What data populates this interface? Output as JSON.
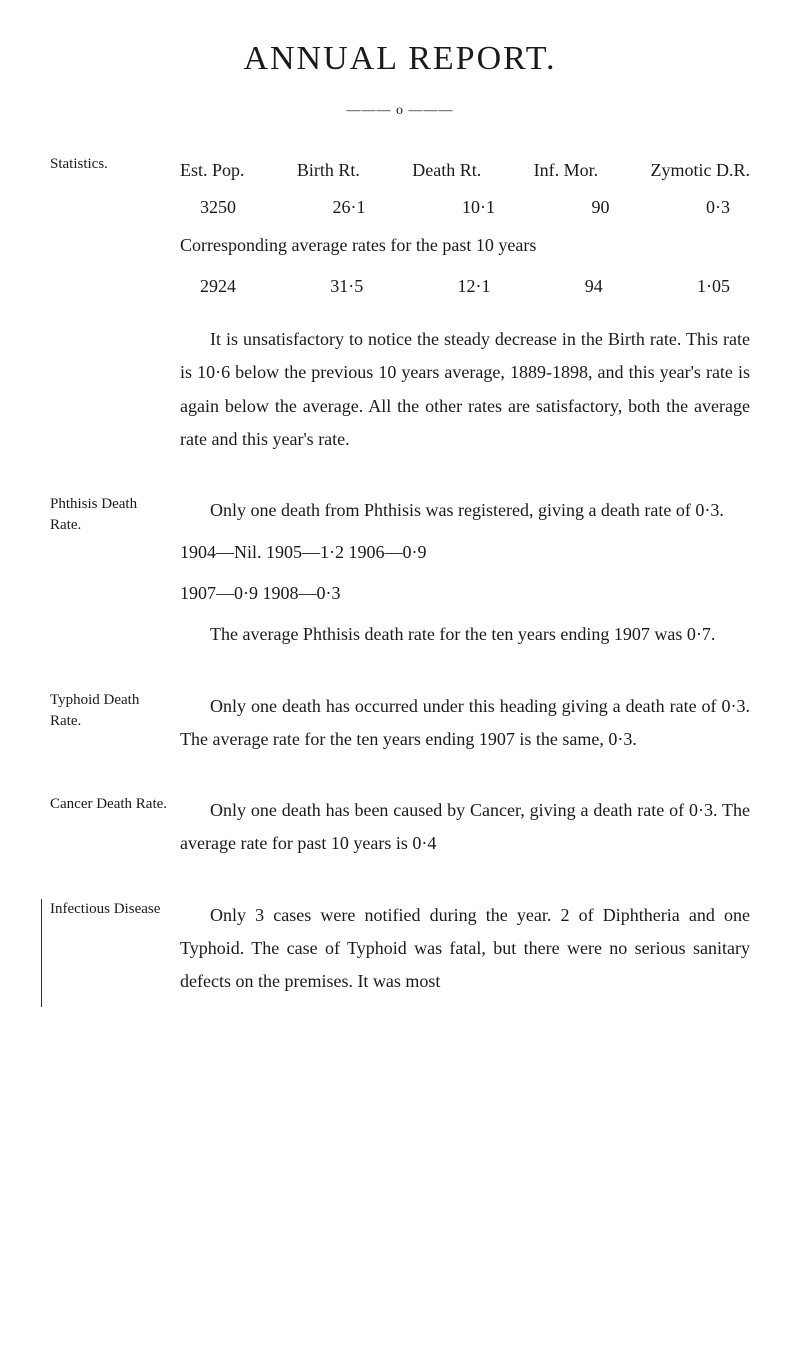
{
  "page": {
    "title": "ANNUAL REPORT.",
    "divider": "——— o ———",
    "sections": {
      "statistics": {
        "label": "Statistics.",
        "header_row": {
          "c0": "Est. Pop.",
          "c1": "Birth Rt.",
          "c2": "Death Rt.",
          "c3": "Inf. Mor.",
          "c4": "Zymotic D.R."
        },
        "row1": {
          "c0": "3250",
          "c1": "26·1",
          "c2": "10·1",
          "c3": "90",
          "c4": "0·3"
        },
        "corresponding": "Corresponding average rates for the past 10 years",
        "row2": {
          "c0": "2924",
          "c1": "31·5",
          "c2": "12·1",
          "c3": "94",
          "c4": "1·05"
        },
        "para": "It is unsatisfactory to notice the steady decrease in the Birth rate. This rate is 10·6 below the previous 10 years average, 1889-1898, and this year's rate is again below the average. All the other rates are satisfactory, both the average rate and this year's rate."
      },
      "phthisis": {
        "label": "Phthisis Death Rate.",
        "para1": "Only one death from Phthisis was registered, giving a death rate of 0·3.",
        "years1": "1904—Nil.   1905—1·2   1906—0·9",
        "years2": "1907—0·9   1908—0·3",
        "para2": "The average Phthisis death rate for the ten years ending 1907 was 0·7."
      },
      "typhoid": {
        "label": "Typhoid Death Rate.",
        "para": "Only one death has occurred under this heading giving a death rate of 0·3. The average rate for the ten years ending 1907 is the same, 0·3."
      },
      "cancer": {
        "label": "Cancer Death Rate.",
        "para": "Only one death has been caused by Cancer, giving a death rate of 0·3. The average rate for past 10 years is 0·4"
      },
      "infectious": {
        "label": "Infectious Disease",
        "para": "Only 3 cases were notified during the year. 2 of Diphtheria and one Typhoid. The case of Typhoid was fatal, but there were no serious sanitary defects on the premises. It was most"
      }
    }
  }
}
